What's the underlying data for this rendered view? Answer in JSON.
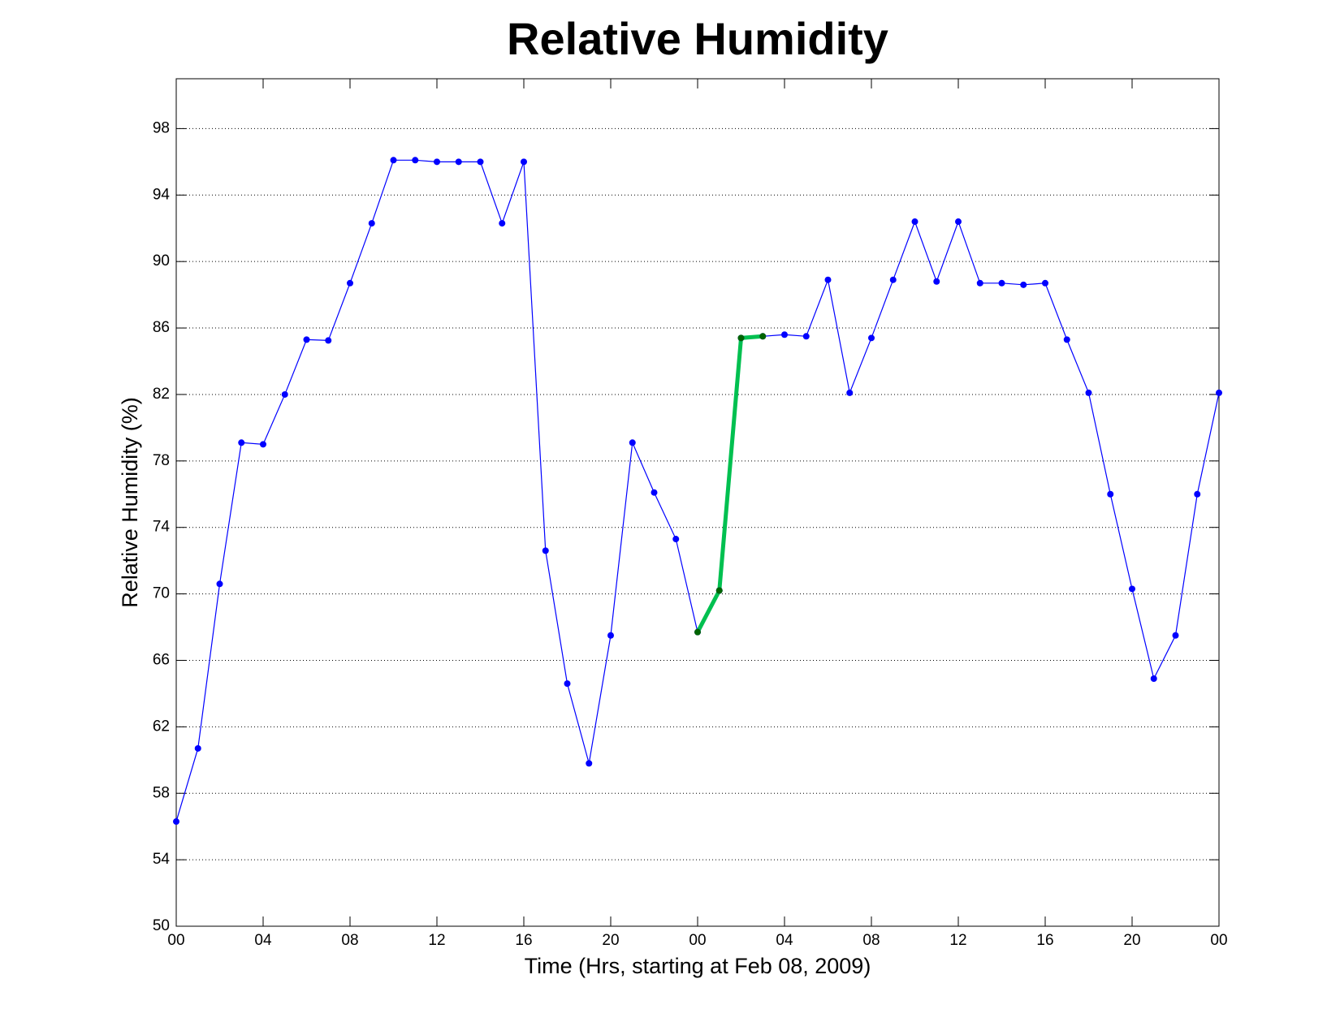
{
  "chart_data": {
    "type": "line",
    "title": "Relative Humidity",
    "x_label": "Time (Hrs, starting at Feb 08, 2009)",
    "y_label": "Relative Humidity (%)",
    "x": [
      0,
      1,
      2,
      3,
      4,
      5,
      6,
      7,
      8,
      9,
      10,
      11,
      12,
      13,
      14,
      15,
      16,
      17,
      18,
      19,
      20,
      21,
      22,
      23,
      24,
      25,
      26,
      27,
      28,
      29,
      30,
      31,
      32,
      33,
      34,
      35,
      36,
      37,
      38,
      39,
      40,
      41,
      42,
      43,
      44,
      45,
      46,
      47,
      48
    ],
    "series": [
      {
        "color": "#0000ff",
        "values": [
          56.3,
          60.7,
          70.6,
          79.1,
          79.0,
          82.0,
          85.3,
          85.25,
          88.7,
          92.3,
          96.1,
          96.1,
          96.0,
          96.0,
          96.0,
          92.3,
          96.0,
          72.6,
          64.6,
          59.8,
          67.5,
          79.1,
          76.1,
          73.3,
          67.7,
          70.2,
          85.4,
          85.5,
          85.6,
          85.5,
          88.9,
          82.1,
          85.4,
          88.9,
          92.4,
          88.8,
          92.4,
          88.7,
          88.7,
          88.6,
          88.7,
          85.3,
          82.1,
          76.0,
          70.3,
          64.9,
          67.5,
          76.0,
          82.1
        ]
      },
      {
        "color": "#00c050",
        "values": [
          null,
          null,
          null,
          null,
          null,
          null,
          null,
          null,
          null,
          null,
          null,
          null,
          null,
          null,
          null,
          null,
          null,
          null,
          null,
          null,
          null,
          null,
          null,
          null,
          67.7,
          70.2,
          85.4,
          85.5,
          null,
          null,
          null,
          null,
          null,
          null,
          null,
          null,
          null,
          null,
          null,
          null,
          null,
          null,
          null,
          null,
          null,
          null,
          null,
          null,
          null
        ]
      }
    ],
    "xlim": [
      0,
      48
    ],
    "xticks": [
      {
        "value": 0,
        "label": "00"
      },
      {
        "value": 4,
        "label": "04"
      },
      {
        "value": 8,
        "label": "08"
      },
      {
        "value": 12,
        "label": "12"
      },
      {
        "value": 16,
        "label": "16"
      },
      {
        "value": 20,
        "label": "20"
      },
      {
        "value": 24,
        "label": "00"
      },
      {
        "value": 28,
        "label": "04"
      },
      {
        "value": 32,
        "label": "08"
      },
      {
        "value": 36,
        "label": "12"
      },
      {
        "value": 40,
        "label": "16"
      },
      {
        "value": 44,
        "label": "20"
      },
      {
        "value": 48,
        "label": "00"
      }
    ],
    "ylim": [
      50,
      101
    ],
    "yticks": [
      50,
      54,
      58,
      62,
      66,
      70,
      74,
      78,
      82,
      86,
      90,
      94,
      98
    ],
    "grid": true
  }
}
